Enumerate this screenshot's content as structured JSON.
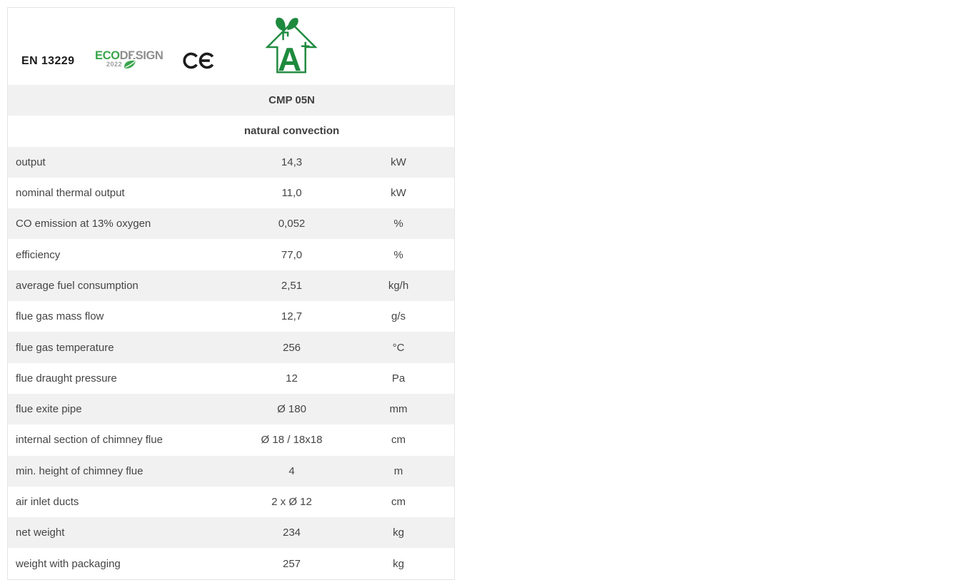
{
  "certifications": {
    "standard": "EN 13229",
    "ecodesign": {
      "eco": "ECO",
      "design": "DESIGN",
      "year": "2022"
    },
    "ce": "CE",
    "energy_class": "A",
    "energy_class_modifier": "+"
  },
  "table": {
    "model": "CMP 05N",
    "convection_type": "natural convection",
    "rows": [
      {
        "label": "output",
        "value": "14,3",
        "unit": "kW"
      },
      {
        "label": "nominal thermal output",
        "value": "11,0",
        "unit": "kW"
      },
      {
        "label": "CO emission at 13% oxygen",
        "value": "0,052",
        "unit": "%"
      },
      {
        "label": "efficiency",
        "value": "77,0",
        "unit": "%"
      },
      {
        "label": "average fuel consumption",
        "value": "2,51",
        "unit": "kg/h"
      },
      {
        "label": "flue gas mass flow",
        "value": "12,7",
        "unit": "g/s"
      },
      {
        "label": "flue gas temperature",
        "value": "256",
        "unit": "°C"
      },
      {
        "label": "flue draught pressure",
        "value": "12",
        "unit": "Pa"
      },
      {
        "label": "flue exite pipe",
        "value": "Ø 180",
        "unit": "mm"
      },
      {
        "label": "internal section of chimney flue",
        "value": "Ø 18 / 18x18",
        "unit": "cm"
      },
      {
        "label": "min. height of chimney flue",
        "value": "4",
        "unit": "m"
      },
      {
        "label": "air inlet ducts",
        "value": "2 x Ø 12",
        "unit": "cm"
      },
      {
        "label": "net weight",
        "value": "234",
        "unit": "kg"
      },
      {
        "label": "weight with packaging",
        "value": "257",
        "unit": "kg"
      }
    ]
  },
  "colors": {
    "eco_green": "#3ba54d",
    "house_green": "#1e8a3e",
    "logo_gray": "#8e8e8e",
    "mark_black": "#1c1c1c",
    "shaded_row": "#f1f1f1",
    "text": "#454545"
  }
}
